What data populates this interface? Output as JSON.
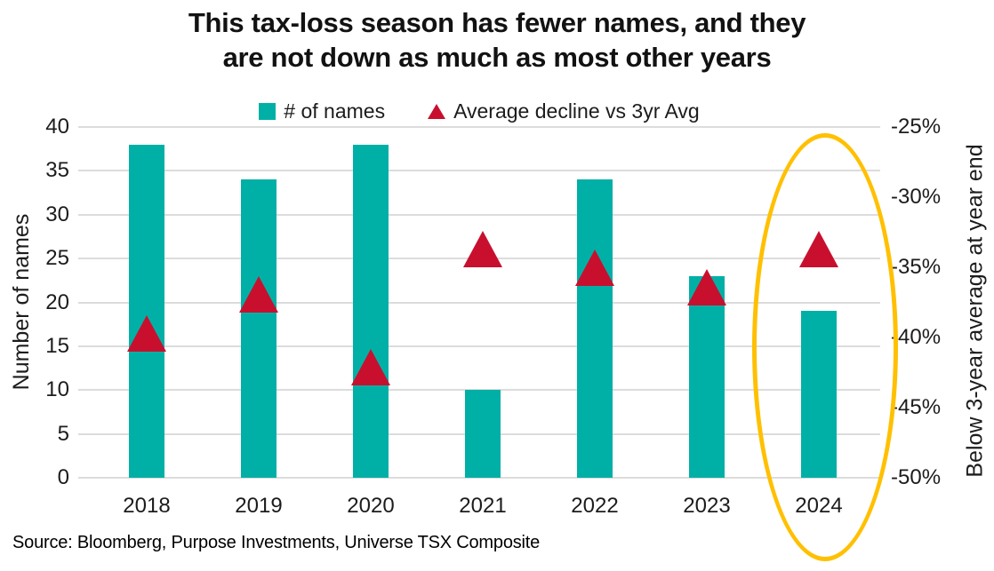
{
  "title": {
    "line1": "This tax-loss season has fewer names, and they",
    "line2": "are not down as much as most other years"
  },
  "legend": [
    {
      "label": "# of names",
      "marker": "square",
      "color": "#00B0A6"
    },
    {
      "label": "Average decline vs 3yr Avg",
      "marker": "triangle",
      "color": "#C8102E"
    }
  ],
  "source": "Source: Bloomberg, Purpose Investments, Universe TSX Composite",
  "colors": {
    "bar_teal": "#00B0A6",
    "triangle_red": "#C8102E",
    "highlight_yellow": "#FFC000",
    "gridline_gray": "#DCDCDC",
    "text": "#111111"
  },
  "chart_data": {
    "type": "bar",
    "subtype": "bar-with-triangle-markers-dual-axis",
    "categories": [
      "2018",
      "2019",
      "2020",
      "2021",
      "2022",
      "2023",
      "2024"
    ],
    "series": [
      {
        "name": "# of names",
        "type": "bar",
        "axis": "left",
        "color": "#00B0A6",
        "values": [
          38,
          34,
          38,
          10,
          34,
          23,
          19
        ]
      },
      {
        "name": "Average decline vs 3yr Avg",
        "type": "triangle-marker",
        "axis": "right",
        "color": "#C8102E",
        "values": [
          -39.7,
          -36.9,
          -42.1,
          -33.7,
          -35,
          -36.4,
          -33.7
        ]
      }
    ],
    "left_axis": {
      "title": "Number of names",
      "min": 0,
      "max": 40,
      "ticks": [
        40,
        35,
        30,
        25,
        20,
        15,
        10,
        5,
        0
      ]
    },
    "right_axis": {
      "title": "Below 3-year average at year end",
      "min": -50,
      "max": -25,
      "tick_labels": [
        "-25%",
        "-30%",
        "-35%",
        "-40%",
        "-45%",
        "-50%"
      ]
    },
    "grid": true,
    "legend_position": "top-center",
    "annotation": {
      "type": "ellipse",
      "target_category": "2024",
      "color": "#FFC000",
      "note": "highlights 2024 column, marker and x label"
    }
  }
}
